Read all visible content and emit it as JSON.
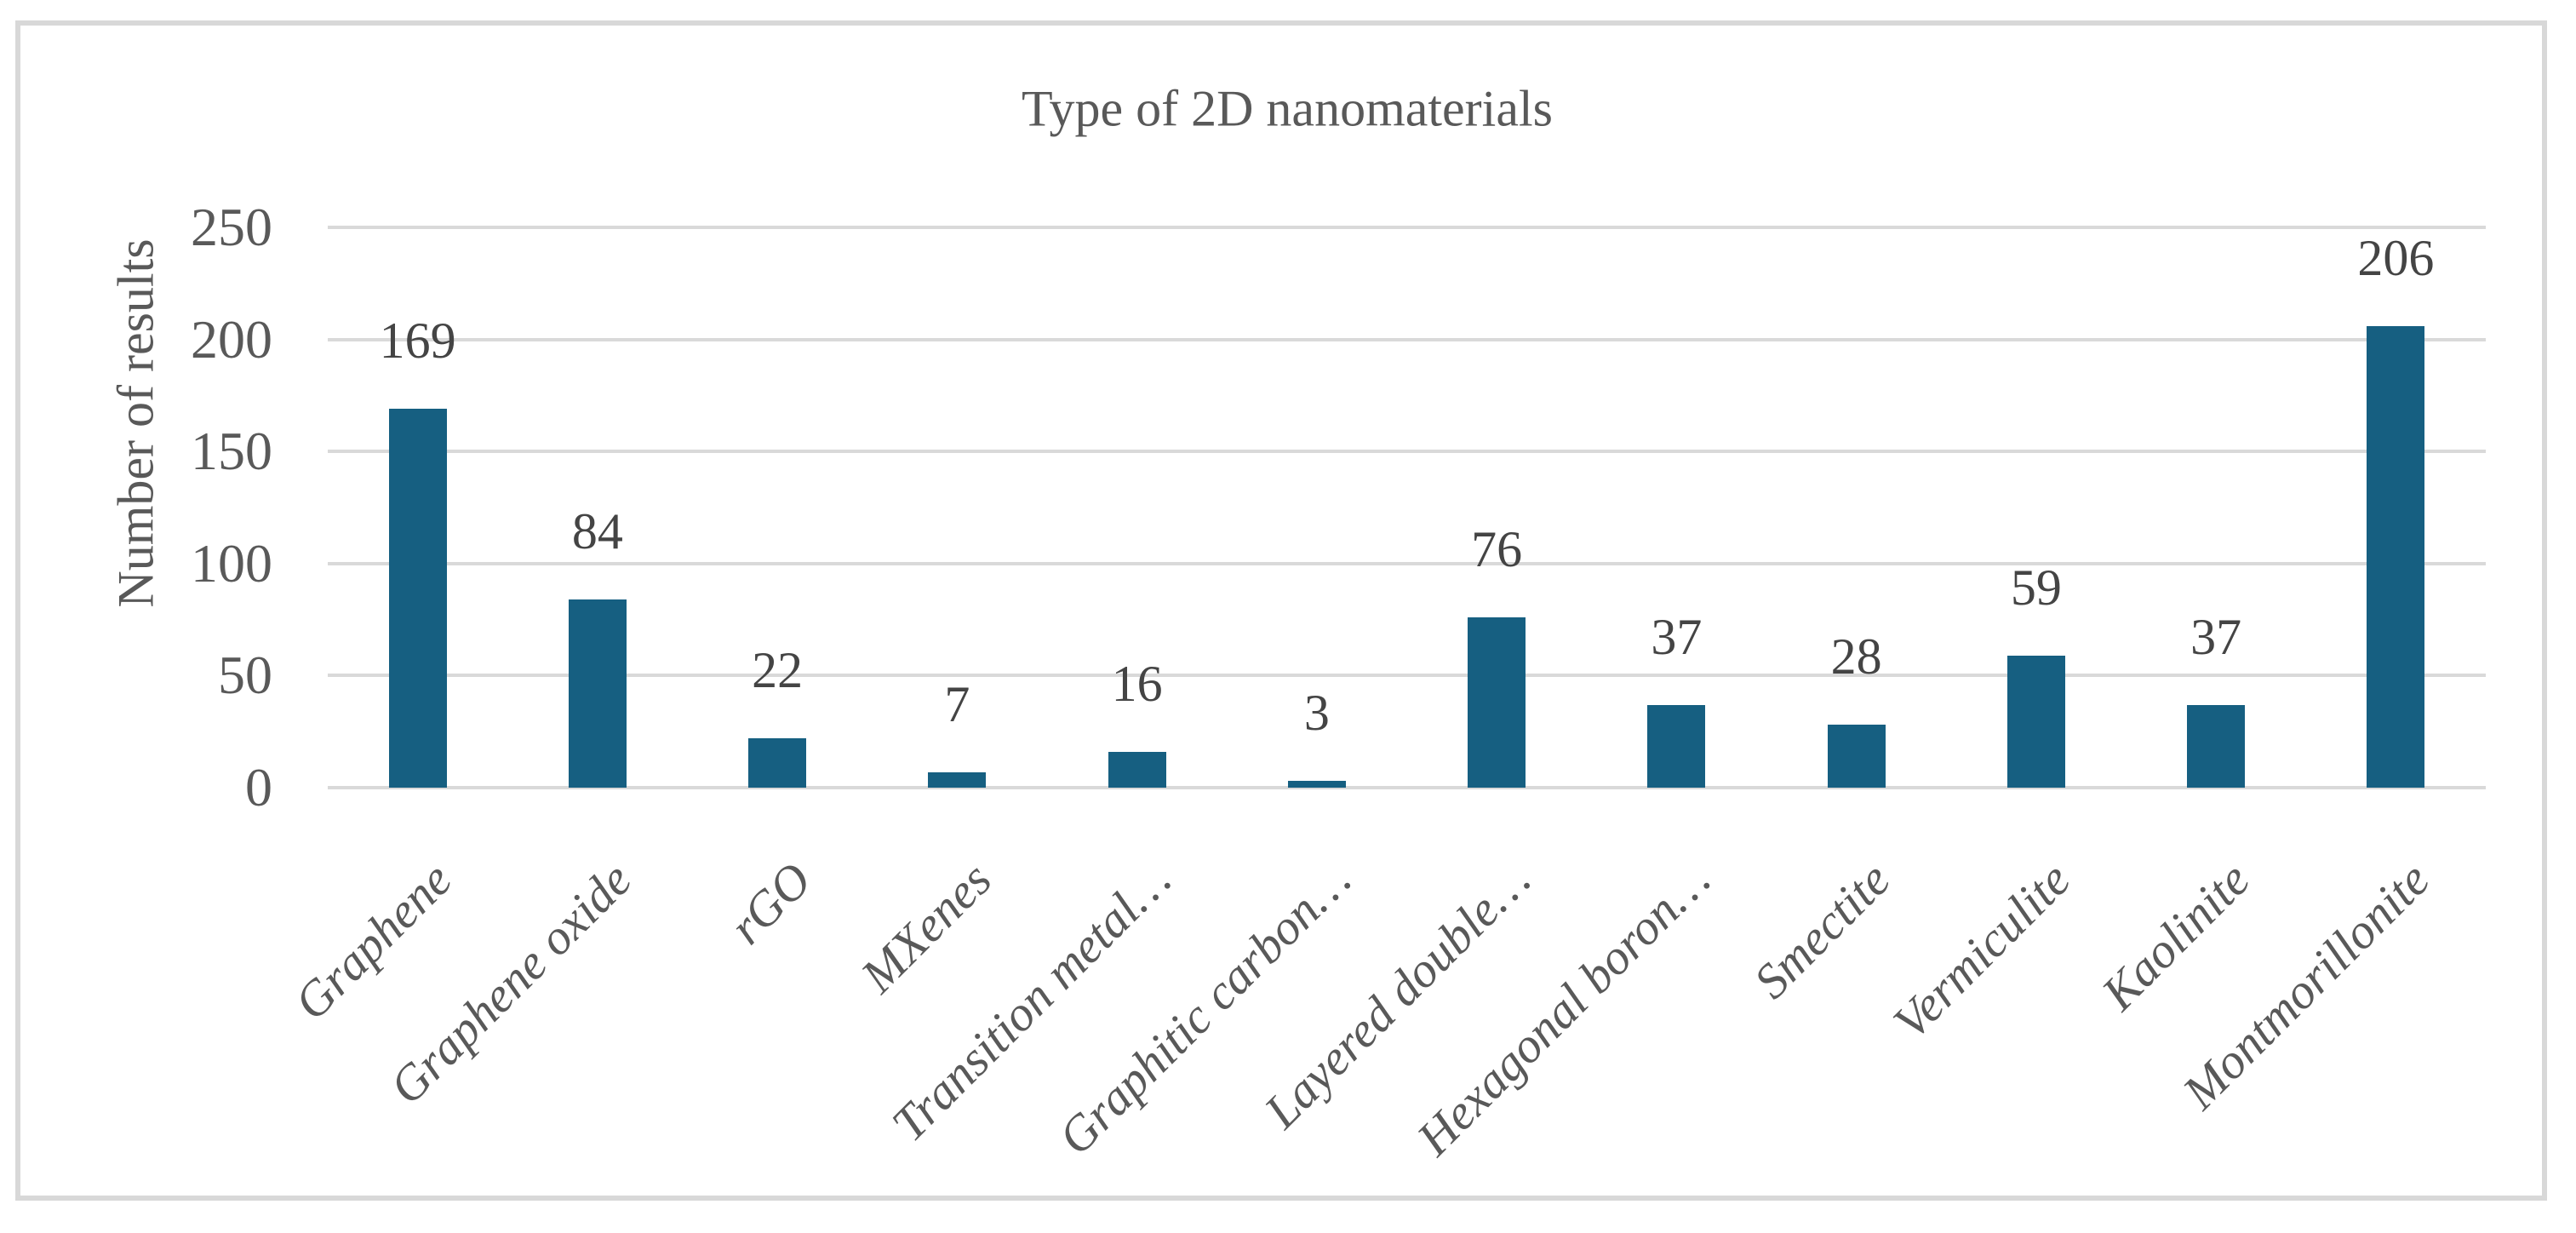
{
  "chart_data": {
    "type": "bar",
    "title": "Type of 2D nanomaterials",
    "xlabel": "",
    "ylabel": "Number of results",
    "categories": [
      "Graphene",
      "Graphene oxide",
      "rGO",
      "MXenes",
      "Transition metal…",
      "Graphitic carbon…",
      "Layered double…",
      "Hexagonal boron…",
      "Smectite",
      "Vermiculite",
      "Kaolinite",
      "Montmorillonite"
    ],
    "values": [
      169,
      84,
      22,
      7,
      16,
      3,
      76,
      37,
      28,
      59,
      37,
      206
    ],
    "ylim": [
      0,
      250
    ],
    "yticks": [
      0,
      50,
      100,
      150,
      200,
      250
    ],
    "grid": true,
    "legend": "none",
    "bar_color": "#165F81",
    "gridline_color": "#D9D9D9",
    "text_color": "#595959",
    "frame_color": "#D8D8D8"
  }
}
